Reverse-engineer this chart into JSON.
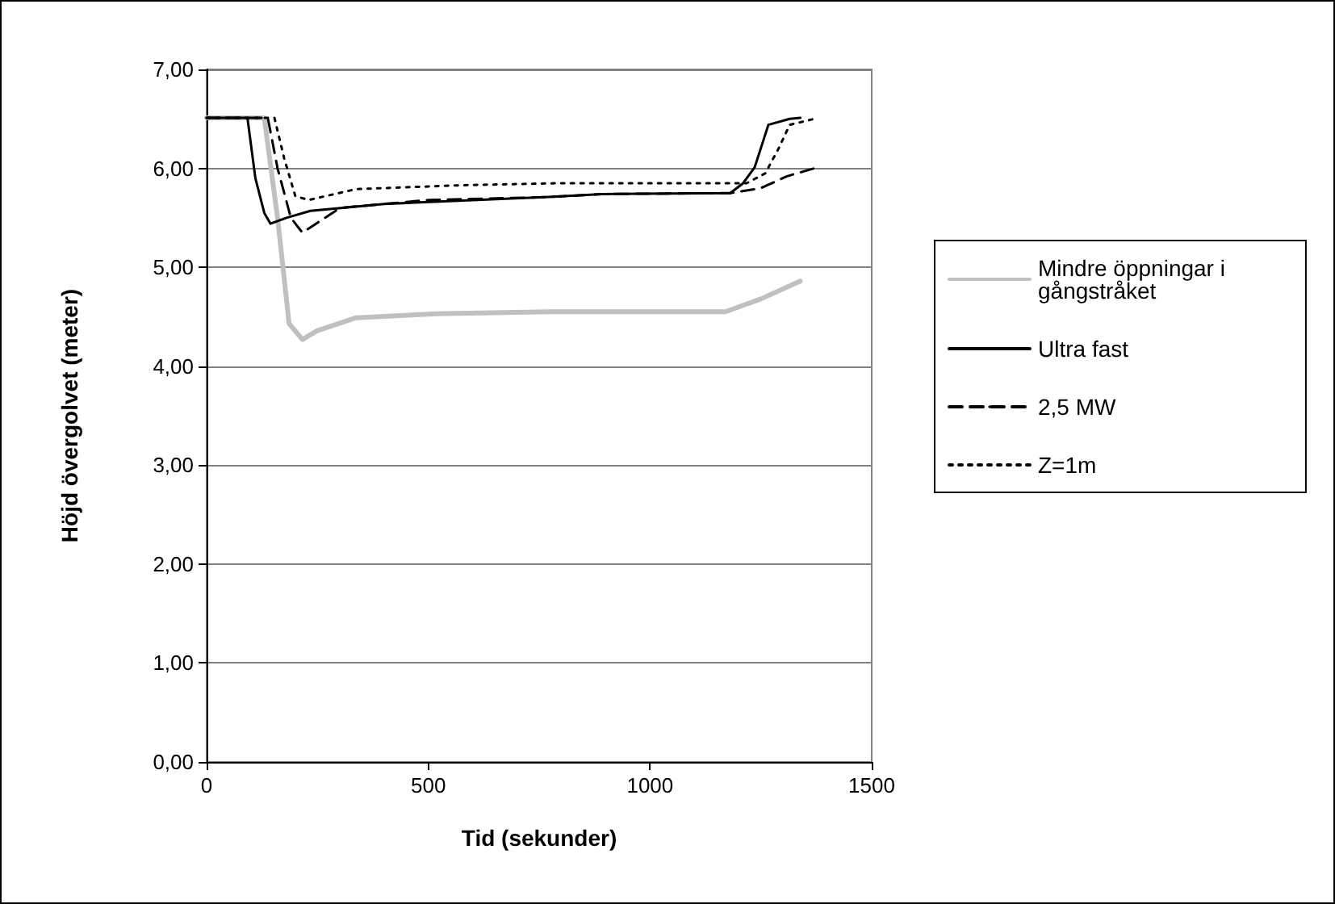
{
  "chart_data": {
    "type": "line",
    "xlabel": "Tid (sekunder)",
    "ylabel": "Höjd övergolvet (meter)",
    "xlim": [
      0,
      1500
    ],
    "xticks": [
      0,
      500,
      1000,
      1500
    ],
    "ylim": [
      0,
      7
    ],
    "yticks": [
      {
        "value": 0,
        "label": "0,00"
      },
      {
        "value": 1,
        "label": "1,00"
      },
      {
        "value": 2,
        "label": "2,00"
      },
      {
        "value": 3,
        "label": "3,00"
      },
      {
        "value": 4,
        "label": "4,00"
      },
      {
        "value": 5,
        "label": "5,00"
      },
      {
        "value": 6,
        "label": "6,00"
      },
      {
        "value": 7,
        "label": "7,00"
      }
    ],
    "grid": "y",
    "legend": "right",
    "marker": "none",
    "series": [
      {
        "name": "Mindre öppningar i gångstråket",
        "color": "#c0c0c0",
        "line_style": "solid",
        "x": [
          0,
          130,
          160,
          186,
          216,
          250,
          337,
          518,
          772,
          1000,
          1170,
          1250,
          1339
        ],
        "values": [
          6.51,
          6.51,
          5.5,
          4.43,
          4.27,
          4.36,
          4.49,
          4.53,
          4.55,
          4.55,
          4.55,
          4.68,
          4.86
        ]
      },
      {
        "name": "Ultra fast",
        "color": "#000000",
        "line_style": "solid",
        "x": [
          0,
          92,
          110,
          130,
          144,
          180,
          234,
          400,
          772,
          891,
          1181,
          1210,
          1236,
          1267,
          1315,
          1339
        ],
        "values": [
          6.51,
          6.51,
          5.9,
          5.55,
          5.44,
          5.5,
          5.57,
          5.64,
          5.71,
          5.74,
          5.75,
          5.85,
          6.01,
          6.44,
          6.5,
          6.51
        ]
      },
      {
        "name": "2,5 MW",
        "color": "#000000",
        "line_style": "dashed",
        "x": [
          0,
          138,
          160,
          190,
          216,
          301,
          500,
          772,
          891,
          1181,
          1250,
          1309,
          1370
        ],
        "values": [
          6.51,
          6.51,
          6.0,
          5.5,
          5.35,
          5.6,
          5.68,
          5.71,
          5.74,
          5.75,
          5.8,
          5.92,
          6.0
        ]
      },
      {
        "name": "Z=1m",
        "color": "#000000",
        "line_style": "dotted",
        "x": [
          0,
          153,
          175,
          200,
          230,
          337,
          579,
          800,
          1218,
          1260,
          1290,
          1315,
          1370
        ],
        "values": [
          6.51,
          6.51,
          6.1,
          5.72,
          5.68,
          5.79,
          5.83,
          5.85,
          5.85,
          5.95,
          6.2,
          6.44,
          6.5
        ]
      }
    ]
  }
}
